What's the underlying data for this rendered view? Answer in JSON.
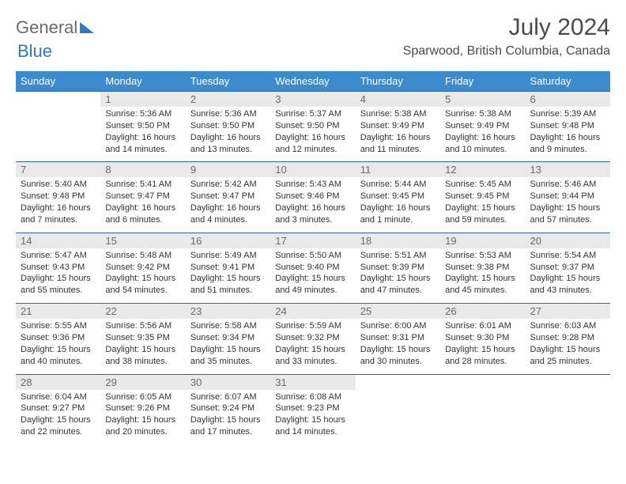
{
  "brand": {
    "part1": "General",
    "part2": "Blue"
  },
  "title": "July 2024",
  "location": "Sparwood, British Columbia, Canada",
  "colors": {
    "header_bg": "#3b8bcf",
    "header_text": "#ffffff",
    "daynum_bg": "#e9e9e9",
    "border": "#2b6aa8",
    "text": "#333333"
  },
  "day_headers": [
    "Sunday",
    "Monday",
    "Tuesday",
    "Wednesday",
    "Thursday",
    "Friday",
    "Saturday"
  ],
  "weeks": [
    [
      null,
      {
        "n": "1",
        "sr": "Sunrise: 5:36 AM",
        "ss": "Sunset: 9:50 PM",
        "d1": "Daylight: 16 hours",
        "d2": "and 14 minutes."
      },
      {
        "n": "2",
        "sr": "Sunrise: 5:36 AM",
        "ss": "Sunset: 9:50 PM",
        "d1": "Daylight: 16 hours",
        "d2": "and 13 minutes."
      },
      {
        "n": "3",
        "sr": "Sunrise: 5:37 AM",
        "ss": "Sunset: 9:50 PM",
        "d1": "Daylight: 16 hours",
        "d2": "and 12 minutes."
      },
      {
        "n": "4",
        "sr": "Sunrise: 5:38 AM",
        "ss": "Sunset: 9:49 PM",
        "d1": "Daylight: 16 hours",
        "d2": "and 11 minutes."
      },
      {
        "n": "5",
        "sr": "Sunrise: 5:38 AM",
        "ss": "Sunset: 9:49 PM",
        "d1": "Daylight: 16 hours",
        "d2": "and 10 minutes."
      },
      {
        "n": "6",
        "sr": "Sunrise: 5:39 AM",
        "ss": "Sunset: 9:48 PM",
        "d1": "Daylight: 16 hours",
        "d2": "and 9 minutes."
      }
    ],
    [
      {
        "n": "7",
        "sr": "Sunrise: 5:40 AM",
        "ss": "Sunset: 9:48 PM",
        "d1": "Daylight: 16 hours",
        "d2": "and 7 minutes."
      },
      {
        "n": "8",
        "sr": "Sunrise: 5:41 AM",
        "ss": "Sunset: 9:47 PM",
        "d1": "Daylight: 16 hours",
        "d2": "and 6 minutes."
      },
      {
        "n": "9",
        "sr": "Sunrise: 5:42 AM",
        "ss": "Sunset: 9:47 PM",
        "d1": "Daylight: 16 hours",
        "d2": "and 4 minutes."
      },
      {
        "n": "10",
        "sr": "Sunrise: 5:43 AM",
        "ss": "Sunset: 9:46 PM",
        "d1": "Daylight: 16 hours",
        "d2": "and 3 minutes."
      },
      {
        "n": "11",
        "sr": "Sunrise: 5:44 AM",
        "ss": "Sunset: 9:45 PM",
        "d1": "Daylight: 16 hours",
        "d2": "and 1 minute."
      },
      {
        "n": "12",
        "sr": "Sunrise: 5:45 AM",
        "ss": "Sunset: 9:45 PM",
        "d1": "Daylight: 15 hours",
        "d2": "and 59 minutes."
      },
      {
        "n": "13",
        "sr": "Sunrise: 5:46 AM",
        "ss": "Sunset: 9:44 PM",
        "d1": "Daylight: 15 hours",
        "d2": "and 57 minutes."
      }
    ],
    [
      {
        "n": "14",
        "sr": "Sunrise: 5:47 AM",
        "ss": "Sunset: 9:43 PM",
        "d1": "Daylight: 15 hours",
        "d2": "and 55 minutes."
      },
      {
        "n": "15",
        "sr": "Sunrise: 5:48 AM",
        "ss": "Sunset: 9:42 PM",
        "d1": "Daylight: 15 hours",
        "d2": "and 54 minutes."
      },
      {
        "n": "16",
        "sr": "Sunrise: 5:49 AM",
        "ss": "Sunset: 9:41 PM",
        "d1": "Daylight: 15 hours",
        "d2": "and 51 minutes."
      },
      {
        "n": "17",
        "sr": "Sunrise: 5:50 AM",
        "ss": "Sunset: 9:40 PM",
        "d1": "Daylight: 15 hours",
        "d2": "and 49 minutes."
      },
      {
        "n": "18",
        "sr": "Sunrise: 5:51 AM",
        "ss": "Sunset: 9:39 PM",
        "d1": "Daylight: 15 hours",
        "d2": "and 47 minutes."
      },
      {
        "n": "19",
        "sr": "Sunrise: 5:53 AM",
        "ss": "Sunset: 9:38 PM",
        "d1": "Daylight: 15 hours",
        "d2": "and 45 minutes."
      },
      {
        "n": "20",
        "sr": "Sunrise: 5:54 AM",
        "ss": "Sunset: 9:37 PM",
        "d1": "Daylight: 15 hours",
        "d2": "and 43 minutes."
      }
    ],
    [
      {
        "n": "21",
        "sr": "Sunrise: 5:55 AM",
        "ss": "Sunset: 9:36 PM",
        "d1": "Daylight: 15 hours",
        "d2": "and 40 minutes."
      },
      {
        "n": "22",
        "sr": "Sunrise: 5:56 AM",
        "ss": "Sunset: 9:35 PM",
        "d1": "Daylight: 15 hours",
        "d2": "and 38 minutes."
      },
      {
        "n": "23",
        "sr": "Sunrise: 5:58 AM",
        "ss": "Sunset: 9:34 PM",
        "d1": "Daylight: 15 hours",
        "d2": "and 35 minutes."
      },
      {
        "n": "24",
        "sr": "Sunrise: 5:59 AM",
        "ss": "Sunset: 9:32 PM",
        "d1": "Daylight: 15 hours",
        "d2": "and 33 minutes."
      },
      {
        "n": "25",
        "sr": "Sunrise: 6:00 AM",
        "ss": "Sunset: 9:31 PM",
        "d1": "Daylight: 15 hours",
        "d2": "and 30 minutes."
      },
      {
        "n": "26",
        "sr": "Sunrise: 6:01 AM",
        "ss": "Sunset: 9:30 PM",
        "d1": "Daylight: 15 hours",
        "d2": "and 28 minutes."
      },
      {
        "n": "27",
        "sr": "Sunrise: 6:03 AM",
        "ss": "Sunset: 9:28 PM",
        "d1": "Daylight: 15 hours",
        "d2": "and 25 minutes."
      }
    ],
    [
      {
        "n": "28",
        "sr": "Sunrise: 6:04 AM",
        "ss": "Sunset: 9:27 PM",
        "d1": "Daylight: 15 hours",
        "d2": "and 22 minutes."
      },
      {
        "n": "29",
        "sr": "Sunrise: 6:05 AM",
        "ss": "Sunset: 9:26 PM",
        "d1": "Daylight: 15 hours",
        "d2": "and 20 minutes."
      },
      {
        "n": "30",
        "sr": "Sunrise: 6:07 AM",
        "ss": "Sunset: 9:24 PM",
        "d1": "Daylight: 15 hours",
        "d2": "and 17 minutes."
      },
      {
        "n": "31",
        "sr": "Sunrise: 6:08 AM",
        "ss": "Sunset: 9:23 PM",
        "d1": "Daylight: 15 hours",
        "d2": "and 14 minutes."
      },
      null,
      null,
      null
    ]
  ]
}
